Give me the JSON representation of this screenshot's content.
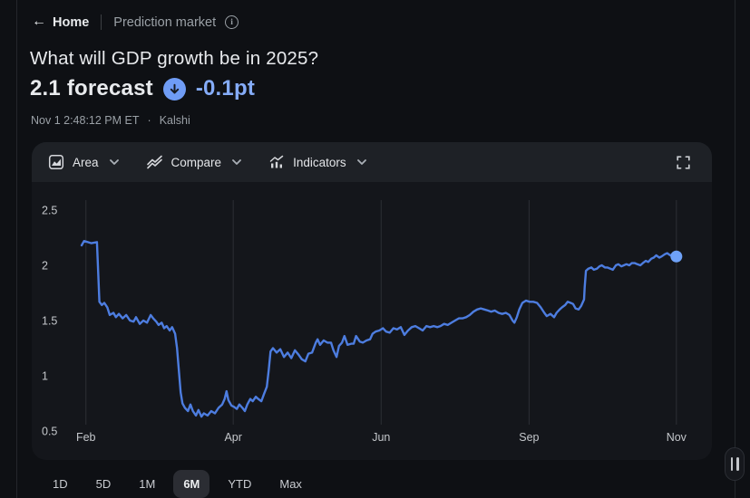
{
  "header": {
    "back_label": "Home",
    "breadcrumb": "Prediction market"
  },
  "title": "What will GDP growth be in 2025?",
  "quote": {
    "value": "2.1 forecast",
    "change": "-0.1pt",
    "direction": "down",
    "timestamp": "Nov 1 2:48:12 PM ET",
    "separator": "·",
    "source": "Kalshi"
  },
  "toolbar": {
    "area_label": "Area",
    "compare_label": "Compare",
    "indicators_label": "Indicators"
  },
  "icons": [
    "back-arrow-icon",
    "info-icon",
    "down-arrow-badge-icon",
    "area-chart-icon",
    "compare-icon",
    "indicators-icon",
    "chevron-down-icon",
    "fullscreen-icon",
    "drag-handle-icon"
  ],
  "colors": {
    "page_bg": "#0e1014",
    "card_bg": "#14161b",
    "toolbar_bg": "#1e2126",
    "accent_blue_text": "#85acf8",
    "badge_blue": "#6f9cf5",
    "line_blue": "#4d7de0",
    "dot_blue": "#6fa2f8",
    "grid": "#2c2f35",
    "axis_text": "#c4c7cb"
  },
  "ranges": {
    "items": [
      {
        "label": "1D",
        "selected": false
      },
      {
        "label": "5D",
        "selected": false
      },
      {
        "label": "1M",
        "selected": false
      },
      {
        "label": "6M",
        "selected": true
      },
      {
        "label": "YTD",
        "selected": false
      },
      {
        "label": "Max",
        "selected": false
      }
    ]
  },
  "chart_data": {
    "type": "line",
    "title": "What will GDP growth be in 2025? — forecast history (6M)",
    "xlabel": "",
    "ylabel": "",
    "ylim": [
      0.5,
      2.5
    ],
    "grid": "vertical-only",
    "legend": "none",
    "line_color": "#4d7de0",
    "dot_color": "#6fa2f8",
    "grid_color": "#2c2f35",
    "axis_text_color": "#c4c7cb",
    "y_ticks": [
      {
        "label": "2.5",
        "value": 2.5
      },
      {
        "label": "2",
        "value": 2.0
      },
      {
        "label": "1.5",
        "value": 1.5
      },
      {
        "label": "1",
        "value": 1.0
      },
      {
        "label": "0.5",
        "value": 0.5
      }
    ],
    "x_ticks": [
      {
        "label": "Feb",
        "pos": 0.01
      },
      {
        "label": "Apr",
        "pos": 0.251
      },
      {
        "label": "Jun",
        "pos": 0.493
      },
      {
        "label": "Sep",
        "pos": 0.735
      },
      {
        "label": "Nov",
        "pos": 0.976
      }
    ],
    "end_value": 2.1,
    "points": [
      [
        0.003,
        2.18
      ],
      [
        0.007,
        2.22
      ],
      [
        0.013,
        2.21
      ],
      [
        0.019,
        2.2
      ],
      [
        0.028,
        2.21
      ],
      [
        0.03,
        1.95
      ],
      [
        0.032,
        1.67
      ],
      [
        0.036,
        1.64
      ],
      [
        0.04,
        1.66
      ],
      [
        0.045,
        1.62
      ],
      [
        0.049,
        1.55
      ],
      [
        0.055,
        1.57
      ],
      [
        0.059,
        1.53
      ],
      [
        0.064,
        1.56
      ],
      [
        0.07,
        1.52
      ],
      [
        0.076,
        1.55
      ],
      [
        0.082,
        1.5
      ],
      [
        0.088,
        1.49
      ],
      [
        0.092,
        1.53
      ],
      [
        0.098,
        1.47
      ],
      [
        0.104,
        1.5
      ],
      [
        0.11,
        1.48
      ],
      [
        0.116,
        1.55
      ],
      [
        0.12,
        1.52
      ],
      [
        0.125,
        1.49
      ],
      [
        0.129,
        1.46
      ],
      [
        0.134,
        1.48
      ],
      [
        0.138,
        1.43
      ],
      [
        0.142,
        1.45
      ],
      [
        0.147,
        1.41
      ],
      [
        0.151,
        1.44
      ],
      [
        0.156,
        1.38
      ],
      [
        0.159,
        1.25
      ],
      [
        0.162,
        1.05
      ],
      [
        0.165,
        0.85
      ],
      [
        0.168,
        0.75
      ],
      [
        0.172,
        0.71
      ],
      [
        0.177,
        0.68
      ],
      [
        0.181,
        0.74
      ],
      [
        0.185,
        0.68
      ],
      [
        0.19,
        0.64
      ],
      [
        0.194,
        0.69
      ],
      [
        0.199,
        0.63
      ],
      [
        0.203,
        0.66
      ],
      [
        0.209,
        0.64
      ],
      [
        0.215,
        0.68
      ],
      [
        0.221,
        0.66
      ],
      [
        0.227,
        0.71
      ],
      [
        0.233,
        0.74
      ],
      [
        0.237,
        0.79
      ],
      [
        0.24,
        0.86
      ],
      [
        0.243,
        0.78
      ],
      [
        0.248,
        0.73
      ],
      [
        0.252,
        0.72
      ],
      [
        0.257,
        0.7
      ],
      [
        0.261,
        0.74
      ],
      [
        0.266,
        0.71
      ],
      [
        0.27,
        0.68
      ],
      [
        0.274,
        0.74
      ],
      [
        0.279,
        0.79
      ],
      [
        0.283,
        0.77
      ],
      [
        0.288,
        0.81
      ],
      [
        0.292,
        0.79
      ],
      [
        0.297,
        0.77
      ],
      [
        0.301,
        0.83
      ],
      [
        0.306,
        0.9
      ],
      [
        0.309,
        1.05
      ],
      [
        0.312,
        1.22
      ],
      [
        0.316,
        1.25
      ],
      [
        0.322,
        1.21
      ],
      [
        0.328,
        1.24
      ],
      [
        0.334,
        1.17
      ],
      [
        0.34,
        1.21
      ],
      [
        0.346,
        1.16
      ],
      [
        0.352,
        1.23
      ],
      [
        0.358,
        1.19
      ],
      [
        0.363,
        1.15
      ],
      [
        0.369,
        1.13
      ],
      [
        0.374,
        1.2
      ],
      [
        0.38,
        1.21
      ],
      [
        0.386,
        1.3
      ],
      [
        0.389,
        1.33
      ],
      [
        0.393,
        1.28
      ],
      [
        0.399,
        1.32
      ],
      [
        0.405,
        1.3
      ],
      [
        0.411,
        1.3
      ],
      [
        0.415,
        1.23
      ],
      [
        0.42,
        1.17
      ],
      [
        0.424,
        1.27
      ],
      [
        0.429,
        1.3
      ],
      [
        0.433,
        1.36
      ],
      [
        0.438,
        1.28
      ],
      [
        0.444,
        1.29
      ],
      [
        0.448,
        1.29
      ],
      [
        0.452,
        1.36
      ],
      [
        0.458,
        1.31
      ],
      [
        0.463,
        1.3
      ],
      [
        0.469,
        1.32
      ],
      [
        0.475,
        1.33
      ],
      [
        0.479,
        1.38
      ],
      [
        0.484,
        1.4
      ],
      [
        0.49,
        1.41
      ],
      [
        0.496,
        1.43
      ],
      [
        0.501,
        1.4
      ],
      [
        0.507,
        1.39
      ],
      [
        0.513,
        1.43
      ],
      [
        0.519,
        1.42
      ],
      [
        0.525,
        1.44
      ],
      [
        0.531,
        1.37
      ],
      [
        0.537,
        1.41
      ],
      [
        0.543,
        1.44
      ],
      [
        0.549,
        1.45
      ],
      [
        0.555,
        1.43
      ],
      [
        0.561,
        1.41
      ],
      [
        0.567,
        1.45
      ],
      [
        0.573,
        1.44
      ],
      [
        0.579,
        1.45
      ],
      [
        0.585,
        1.44
      ],
      [
        0.59,
        1.45
      ],
      [
        0.596,
        1.47
      ],
      [
        0.602,
        1.46
      ],
      [
        0.608,
        1.48
      ],
      [
        0.614,
        1.5
      ],
      [
        0.62,
        1.52
      ],
      [
        0.626,
        1.52
      ],
      [
        0.632,
        1.53
      ],
      [
        0.638,
        1.55
      ],
      [
        0.644,
        1.58
      ],
      [
        0.65,
        1.6
      ],
      [
        0.656,
        1.61
      ],
      [
        0.662,
        1.6
      ],
      [
        0.668,
        1.59
      ],
      [
        0.673,
        1.58
      ],
      [
        0.679,
        1.59
      ],
      [
        0.685,
        1.57
      ],
      [
        0.691,
        1.56
      ],
      [
        0.697,
        1.57
      ],
      [
        0.703,
        1.55
      ],
      [
        0.708,
        1.5
      ],
      [
        0.711,
        1.48
      ],
      [
        0.715,
        1.53
      ],
      [
        0.719,
        1.6
      ],
      [
        0.724,
        1.66
      ],
      [
        0.73,
        1.68
      ],
      [
        0.736,
        1.67
      ],
      [
        0.742,
        1.67
      ],
      [
        0.748,
        1.66
      ],
      [
        0.754,
        1.62
      ],
      [
        0.76,
        1.57
      ],
      [
        0.764,
        1.54
      ],
      [
        0.77,
        1.56
      ],
      [
        0.776,
        1.53
      ],
      [
        0.78,
        1.57
      ],
      [
        0.785,
        1.6
      ],
      [
        0.789,
        1.62
      ],
      [
        0.794,
        1.64
      ],
      [
        0.798,
        1.67
      ],
      [
        0.803,
        1.66
      ],
      [
        0.807,
        1.65
      ],
      [
        0.811,
        1.61
      ],
      [
        0.816,
        1.6
      ],
      [
        0.82,
        1.63
      ],
      [
        0.825,
        1.69
      ],
      [
        0.826,
        1.8
      ],
      [
        0.828,
        1.95
      ],
      [
        0.832,
        1.97
      ],
      [
        0.837,
        1.98
      ],
      [
        0.841,
        1.96
      ],
      [
        0.846,
        1.97
      ],
      [
        0.85,
        1.99
      ],
      [
        0.854,
        2.0
      ],
      [
        0.859,
        1.98
      ],
      [
        0.863,
        1.98
      ],
      [
        0.868,
        1.97
      ],
      [
        0.872,
        1.96
      ],
      [
        0.877,
        2.0
      ],
      [
        0.881,
        2.01
      ],
      [
        0.886,
        1.99
      ],
      [
        0.89,
        2.0
      ],
      [
        0.894,
        2.01
      ],
      [
        0.899,
        2.0
      ],
      [
        0.903,
        2.02
      ],
      [
        0.908,
        2.02
      ],
      [
        0.912,
        2.01
      ],
      [
        0.917,
        2.0
      ],
      [
        0.921,
        2.02
      ],
      [
        0.926,
        2.04
      ],
      [
        0.93,
        2.03
      ],
      [
        0.935,
        2.06
      ],
      [
        0.939,
        2.07
      ],
      [
        0.943,
        2.09
      ],
      [
        0.948,
        2.07
      ],
      [
        0.952,
        2.08
      ],
      [
        0.957,
        2.1
      ],
      [
        0.961,
        2.11
      ],
      [
        0.966,
        2.09
      ],
      [
        0.97,
        2.1
      ],
      [
        0.976,
        2.08
      ]
    ]
  }
}
